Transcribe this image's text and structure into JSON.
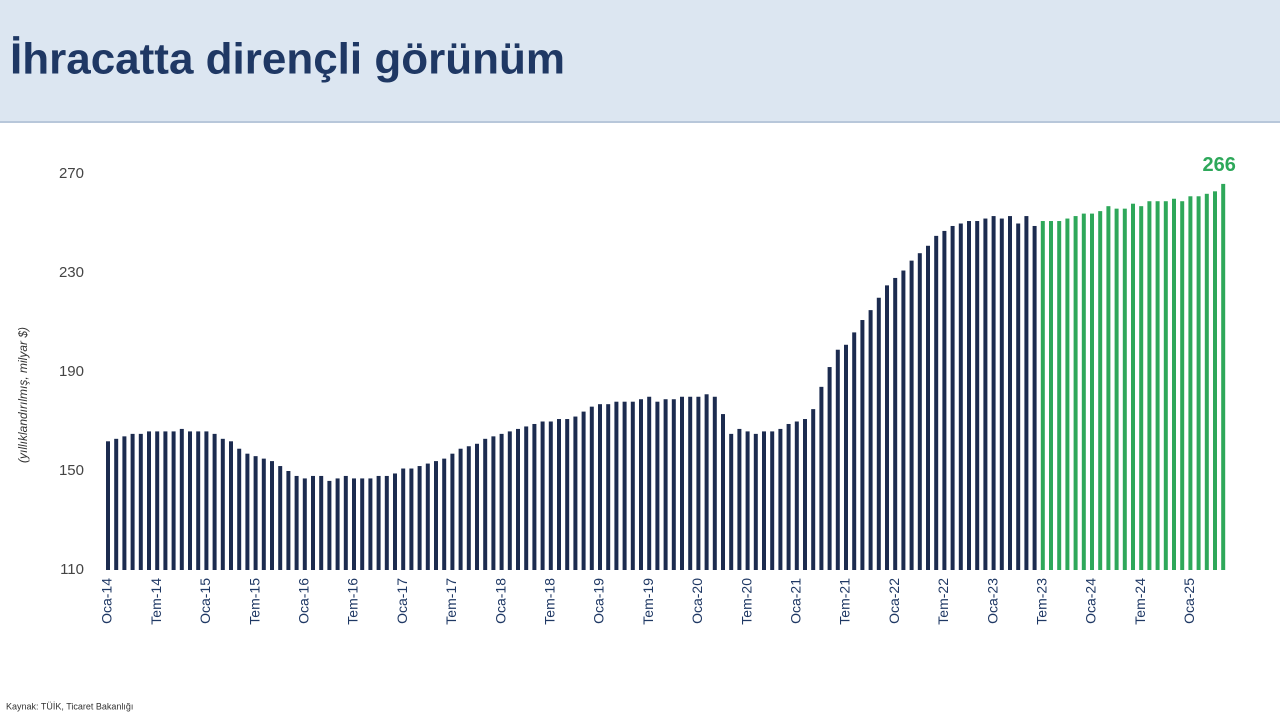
{
  "chart_data": {
    "type": "bar",
    "title": "İhracatta dirençli görünüm",
    "y_label": "(yıllıklandırılmış, milyar $)",
    "source": "Kaynak: TÜİK, Ticaret Bakanlığı",
    "categories": [
      "Oca-14",
      null,
      null,
      null,
      null,
      null,
      "Tem-14",
      null,
      null,
      null,
      null,
      null,
      "Oca-15",
      null,
      null,
      null,
      null,
      null,
      "Tem-15",
      null,
      null,
      null,
      null,
      null,
      "Oca-16",
      null,
      null,
      null,
      null,
      null,
      "Tem-16",
      null,
      null,
      null,
      null,
      null,
      "Oca-17",
      null,
      null,
      null,
      null,
      null,
      "Tem-17",
      null,
      null,
      null,
      null,
      null,
      "Oca-18",
      null,
      null,
      null,
      null,
      null,
      "Tem-18",
      null,
      null,
      null,
      null,
      null,
      "Oca-19",
      null,
      null,
      null,
      null,
      null,
      "Tem-19",
      null,
      null,
      null,
      null,
      null,
      "Oca-20",
      null,
      null,
      null,
      null,
      null,
      "Tem-20",
      null,
      null,
      null,
      null,
      null,
      "Oca-21",
      null,
      null,
      null,
      null,
      null,
      "Tem-21",
      null,
      null,
      null,
      null,
      null,
      "Oca-22",
      null,
      null,
      null,
      null,
      null,
      "Tem-22",
      null,
      null,
      null,
      null,
      null,
      "Oca-23",
      null,
      null,
      null,
      null,
      null,
      "Tem-23",
      null,
      null,
      null,
      null,
      null,
      "Oca-24",
      null,
      null,
      null,
      null,
      null,
      "Tem-24",
      null,
      null,
      null,
      null,
      null,
      "Oca-25",
      null,
      null,
      null,
      null
    ],
    "series": [
      {
        "color": "#1c2b4f",
        "values": [
          162,
          163,
          164,
          165,
          165,
          166,
          166,
          166,
          166,
          167,
          166,
          166,
          166,
          165,
          163,
          162,
          159,
          157,
          156,
          155,
          154,
          152,
          150,
          148,
          147,
          148,
          148,
          146,
          147,
          148,
          147,
          147,
          147,
          148,
          148,
          149,
          151,
          151,
          152,
          153,
          154,
          155,
          157,
          159,
          160,
          161,
          163,
          164,
          165,
          166,
          167,
          168,
          169,
          170,
          170,
          171,
          171,
          172,
          174,
          176,
          177,
          177,
          178,
          178,
          178,
          179,
          180,
          178,
          179,
          179,
          180,
          180,
          180,
          181,
          180,
          173,
          165,
          167,
          166,
          165,
          166,
          166,
          167,
          169,
          170,
          171,
          175,
          184,
          192,
          199,
          201,
          206,
          211,
          215,
          220,
          225,
          228,
          231,
          235,
          238,
          241,
          245,
          247,
          249,
          250,
          251,
          251,
          252,
          253,
          252,
          253,
          250,
          253,
          249,
          null,
          null,
          null,
          null,
          null,
          null,
          null,
          null,
          null,
          null,
          null,
          null,
          null,
          null,
          null,
          null,
          null,
          null,
          null,
          null,
          null,
          null,
          null
        ]
      },
      {
        "color": "#2ea85a",
        "values": [
          null,
          null,
          null,
          null,
          null,
          null,
          null,
          null,
          null,
          null,
          null,
          null,
          null,
          null,
          null,
          null,
          null,
          null,
          null,
          null,
          null,
          null,
          null,
          null,
          null,
          null,
          null,
          null,
          null,
          null,
          null,
          null,
          null,
          null,
          null,
          null,
          null,
          null,
          null,
          null,
          null,
          null,
          null,
          null,
          null,
          null,
          null,
          null,
          null,
          null,
          null,
          null,
          null,
          null,
          null,
          null,
          null,
          null,
          null,
          null,
          null,
          null,
          null,
          null,
          null,
          null,
          null,
          null,
          null,
          null,
          null,
          null,
          null,
          null,
          null,
          null,
          null,
          null,
          null,
          null,
          null,
          null,
          null,
          null,
          null,
          null,
          null,
          null,
          null,
          null,
          null,
          null,
          null,
          null,
          null,
          null,
          null,
          null,
          null,
          null,
          null,
          null,
          null,
          null,
          null,
          null,
          null,
          null,
          null,
          null,
          null,
          null,
          null,
          null,
          251,
          251,
          251,
          252,
          253,
          254,
          254,
          255,
          257,
          256,
          256,
          258,
          257,
          259,
          259,
          259,
          260,
          259,
          261,
          261,
          262,
          263,
          266
        ]
      }
    ],
    "ylim": [
      110,
      270
    ],
    "yticks": [
      110,
      150,
      190,
      230,
      270
    ],
    "grid": false
  }
}
